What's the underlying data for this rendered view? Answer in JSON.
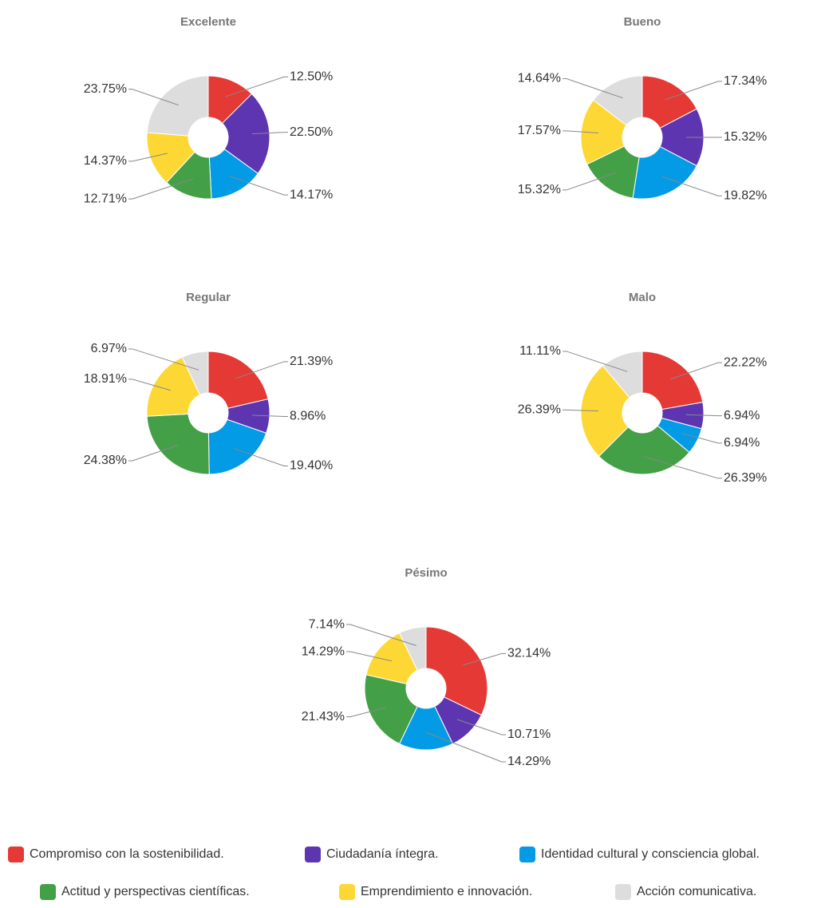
{
  "chart_data": [
    {
      "type": "pie",
      "title": "Excelente",
      "categories": [
        "Compromiso con la sostenibilidad.",
        "Ciudadanía íntegra.",
        "Identidad cultural y consciencia global.",
        "Actitud y perspectivas científicas.",
        "Emprendimiento e innovación.",
        "Acción comunicativa."
      ],
      "values": [
        12.5,
        22.5,
        14.17,
        12.71,
        14.37,
        23.75
      ],
      "value_labels": [
        "12.50%",
        "22.50%",
        "14.17%",
        "12.71%",
        "14.37%",
        "23.75%"
      ],
      "colors": [
        "#e53935",
        "#5e35b1",
        "#039be5",
        "#43a047",
        "#fdd835",
        "#dddddd"
      ]
    },
    {
      "type": "pie",
      "title": "Bueno",
      "categories": [
        "Compromiso con la sostenibilidad.",
        "Ciudadanía íntegra.",
        "Identidad cultural y consciencia global.",
        "Actitud y perspectivas científicas.",
        "Emprendimiento e innovación.",
        "Acción comunicativa."
      ],
      "values": [
        17.34,
        15.32,
        19.82,
        15.32,
        17.57,
        14.64
      ],
      "value_labels": [
        "17.34%",
        "15.32%",
        "19.82%",
        "15.32%",
        "17.57%",
        "14.64%"
      ],
      "colors": [
        "#e53935",
        "#5e35b1",
        "#039be5",
        "#43a047",
        "#fdd835",
        "#dddddd"
      ]
    },
    {
      "type": "pie",
      "title": "Regular",
      "categories": [
        "Compromiso con la sostenibilidad.",
        "Ciudadanía íntegra.",
        "Identidad cultural y consciencia global.",
        "Actitud y perspectivas científicas.",
        "Emprendimiento e innovación.",
        "Acción comunicativa."
      ],
      "values": [
        21.39,
        8.96,
        19.4,
        24.38,
        18.91,
        6.97
      ],
      "value_labels": [
        "21.39%",
        "8.96%",
        "19.40%",
        "24.38%",
        "18.91%",
        "6.97%"
      ],
      "colors": [
        "#e53935",
        "#5e35b1",
        "#039be5",
        "#43a047",
        "#fdd835",
        "#dddddd"
      ]
    },
    {
      "type": "pie",
      "title": "Malo",
      "categories": [
        "Compromiso con la sostenibilidad.",
        "Ciudadanía íntegra.",
        "Identidad cultural y consciencia global.",
        "Actitud y perspectivas científicas.",
        "Emprendimiento e innovación.",
        "Acción comunicativa."
      ],
      "values": [
        22.22,
        6.94,
        6.94,
        26.39,
        26.39,
        11.11
      ],
      "value_labels": [
        "22.22%",
        "6.94%",
        "6.94%",
        "26.39%",
        "26.39%",
        "11.11%"
      ],
      "colors": [
        "#e53935",
        "#5e35b1",
        "#039be5",
        "#43a047",
        "#fdd835",
        "#dddddd"
      ]
    },
    {
      "type": "pie",
      "title": "Pésimo",
      "categories": [
        "Compromiso con la sostenibilidad.",
        "Ciudadanía íntegra.",
        "Identidad cultural y consciencia global.",
        "Actitud y perspectivas científicas.",
        "Emprendimiento e innovación.",
        "Acción comunicativa."
      ],
      "values": [
        32.14,
        10.71,
        14.29,
        21.43,
        14.29,
        7.14
      ],
      "value_labels": [
        "32.14%",
        "10.71%",
        "14.29%",
        "21.43%",
        "14.29%",
        "7.14%"
      ],
      "colors": [
        "#e53935",
        "#5e35b1",
        "#039be5",
        "#43a047",
        "#fdd835",
        "#dddddd"
      ]
    }
  ]
}
